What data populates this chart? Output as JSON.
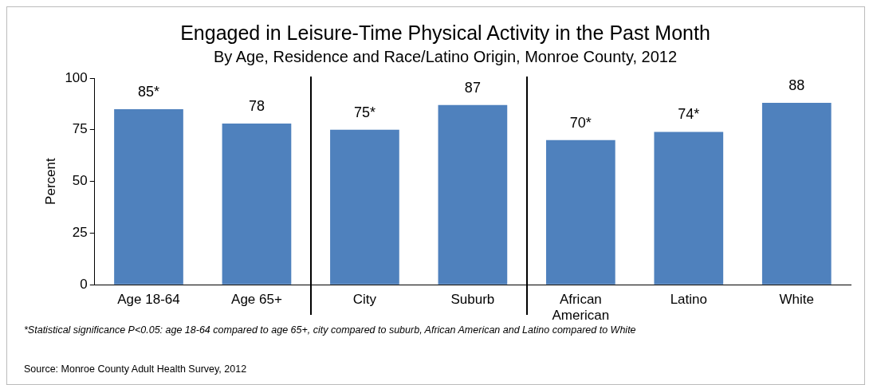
{
  "chart_data": {
    "type": "bar",
    "title": "Engaged in Leisure-Time Physical Activity in the Past Month",
    "subtitle": "By Age, Residence and Race/Latino Origin, Monroe County, 2012",
    "ylabel": "Percent",
    "categories": [
      "Age 18-64",
      "Age 65+",
      "City",
      "Suburb",
      "African American",
      "Latino",
      "White"
    ],
    "values": [
      85,
      78,
      75,
      87,
      70,
      74,
      88
    ],
    "value_labels": [
      "85*",
      "78",
      "75*",
      "87",
      "70*",
      "74*",
      "88"
    ],
    "color": "#4f81bd",
    "ylim": [
      0,
      100
    ],
    "yticks": [
      0,
      25,
      50,
      75,
      100
    ],
    "grid": false,
    "legend": false,
    "annotations": [
      "*Statistical significance P<0.05: age 18-64  compared to age 65+, city compared to suburb, African American and Latino compared to White",
      "Source: Monroe County Adult Health Survey, 2012"
    ]
  }
}
